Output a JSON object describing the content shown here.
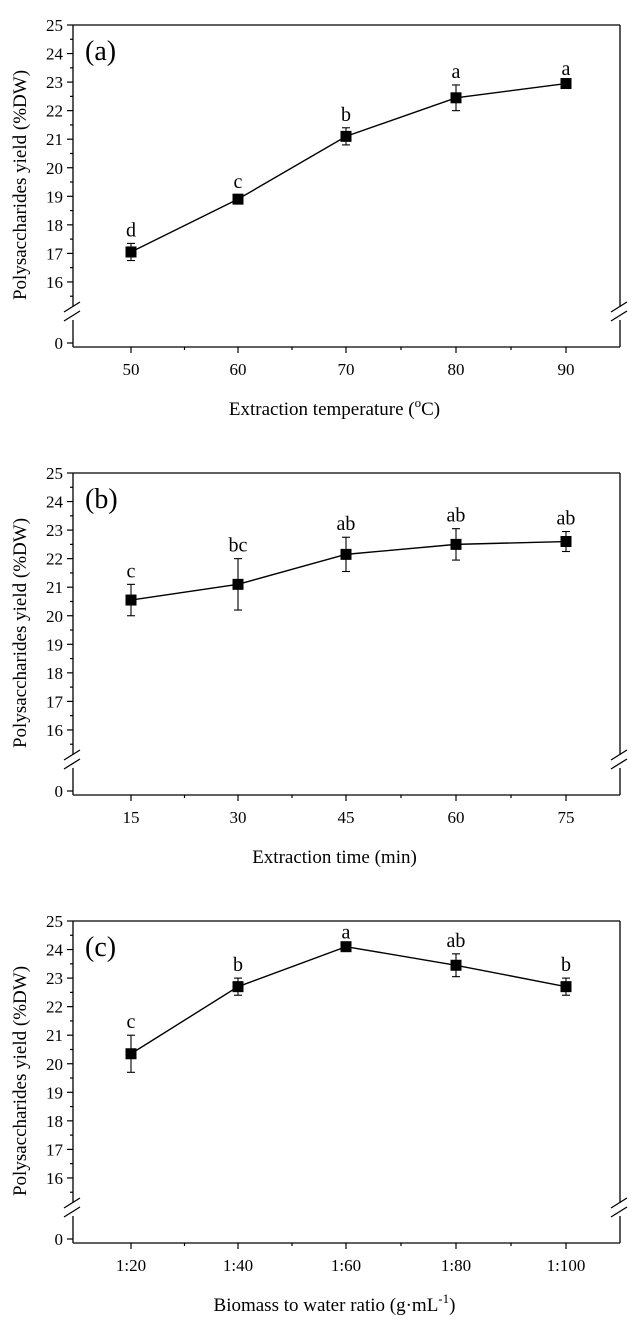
{
  "chart_data": [
    {
      "type": "line",
      "panel_label": "(a)",
      "categories": [
        "50",
        "60",
        "70",
        "80",
        "90"
      ],
      "values": [
        17.05,
        18.9,
        21.1,
        22.45,
        22.95
      ],
      "errors": [
        0.3,
        0.15,
        0.3,
        0.45,
        0.05
      ],
      "significance": [
        "d",
        "c",
        "b",
        "a",
        "a"
      ],
      "xlabel": "Extraction temperature (",
      "xlabel_sup": "o",
      "xlabel_after": "C)",
      "ylabel": "Polysaccharides yield (%DW)",
      "ylim": [
        15,
        25
      ],
      "yticks": [
        "0",
        "16",
        "17",
        "18",
        "19",
        "20",
        "21",
        "22",
        "23",
        "24",
        "25"
      ],
      "axis_break": true
    },
    {
      "type": "line",
      "panel_label": "(b)",
      "categories": [
        "15",
        "30",
        "45",
        "60",
        "75"
      ],
      "values": [
        20.55,
        21.1,
        22.15,
        22.5,
        22.6
      ],
      "errors": [
        0.55,
        0.9,
        0.6,
        0.55,
        0.35
      ],
      "significance": [
        "c",
        "bc",
        "ab",
        "ab",
        "ab"
      ],
      "xlabel": "Extraction time (min)",
      "xlabel_sup": "",
      "xlabel_after": "",
      "ylabel": "Polysaccharides yield (%DW)",
      "ylim": [
        15,
        25
      ],
      "yticks": [
        "0",
        "16",
        "17",
        "18",
        "19",
        "20",
        "21",
        "22",
        "23",
        "24",
        "25"
      ],
      "axis_break": true
    },
    {
      "type": "line",
      "panel_label": "(c)",
      "categories": [
        "1:20",
        "1:40",
        "1:60",
        "1:80",
        "1:100"
      ],
      "values": [
        20.35,
        22.7,
        24.1,
        23.45,
        22.7
      ],
      "errors": [
        0.65,
        0.3,
        0.05,
        0.4,
        0.3
      ],
      "significance": [
        "c",
        "b",
        "a",
        "ab",
        "b"
      ],
      "xlabel": "Biomass to water ratio (g·mL",
      "xlabel_sup": "-1",
      "xlabel_after": ")",
      "ylabel": "Polysaccharides yield (%DW)",
      "ylim": [
        15,
        25
      ],
      "yticks": [
        "0",
        "16",
        "17",
        "18",
        "19",
        "20",
        "21",
        "22",
        "23",
        "24",
        "25"
      ],
      "axis_break": true
    }
  ]
}
